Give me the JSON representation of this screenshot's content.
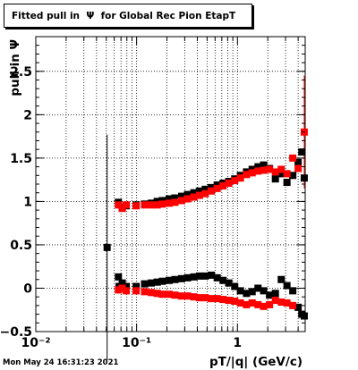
{
  "title": "Fitted pull in  Ψ  for Global Rec Pion EtapT",
  "footer": "Mon May 24 16:31:23 2021",
  "chart_data": {
    "type": "scatter",
    "xlabel": "pT/|q| (GeV/c)",
    "ylabel": "pull in  Ψ",
    "xscale": "log",
    "xlim": [
      0.01,
      4.7
    ],
    "ylim": [
      -0.5,
      2.9
    ],
    "grid": true,
    "x_ticks": [
      {
        "value": 0.01,
        "label": "10⁻²"
      },
      {
        "value": 0.1,
        "label": "10⁻¹"
      },
      {
        "value": 1,
        "label": "1"
      }
    ],
    "y_ticks": [
      {
        "value": -0.5,
        "label": "−0.5"
      },
      {
        "value": 0,
        "label": "0"
      },
      {
        "value": 0.5,
        "label": "0.5"
      },
      {
        "value": 1,
        "label": "1"
      },
      {
        "value": 1.5,
        "label": "1.5"
      },
      {
        "value": 2,
        "label": "2"
      },
      {
        "value": 2.5,
        "label": "2.5"
      }
    ],
    "series": [
      {
        "color": "#000000",
        "points": [
          {
            "x": 0.051,
            "y": 0.47,
            "err": 1.3
          },
          {
            "x": 0.066,
            "y": 0.13
          },
          {
            "x": 0.067,
            "y": 0.02
          },
          {
            "x": 0.072,
            "y": 0.06
          },
          {
            "x": 0.079,
            "y": 0.02
          },
          {
            "x": 0.099,
            "y": 0.02
          },
          {
            "x": 0.066,
            "y": 0.99
          },
          {
            "x": 0.072,
            "y": 0.93
          },
          {
            "x": 0.079,
            "y": 0.95
          },
          {
            "x": 0.099,
            "y": 0.96
          },
          {
            "x": 0.12,
            "y": 0.05
          },
          {
            "x": 0.14,
            "y": 0.06
          },
          {
            "x": 0.16,
            "y": 0.07
          },
          {
            "x": 0.18,
            "y": 0.08
          },
          {
            "x": 0.21,
            "y": 0.09
          },
          {
            "x": 0.24,
            "y": 0.1
          },
          {
            "x": 0.28,
            "y": 0.11
          },
          {
            "x": 0.32,
            "y": 0.12
          },
          {
            "x": 0.37,
            "y": 0.13
          },
          {
            "x": 0.42,
            "y": 0.14
          },
          {
            "x": 0.48,
            "y": 0.14
          },
          {
            "x": 0.55,
            "y": 0.15
          },
          {
            "x": 0.63,
            "y": 0.12
          },
          {
            "x": 0.72,
            "y": 0.09
          },
          {
            "x": 0.82,
            "y": 0.06
          },
          {
            "x": 0.94,
            "y": 0.02
          },
          {
            "x": 1.07,
            "y": -0.03
          },
          {
            "x": 1.23,
            "y": -0.06
          },
          {
            "x": 1.4,
            "y": -0.04
          },
          {
            "x": 1.6,
            "y": 0.0
          },
          {
            "x": 1.82,
            "y": -0.03
          },
          {
            "x": 2.08,
            "y": -0.08
          },
          {
            "x": 2.38,
            "y": -0.06
          },
          {
            "x": 2.72,
            "y": 0.1
          },
          {
            "x": 3.1,
            "y": 0.03
          },
          {
            "x": 3.54,
            "y": -0.03
          },
          {
            "x": 4.0,
            "y": -0.22
          },
          {
            "x": 4.35,
            "y": -0.3
          },
          {
            "x": 4.6,
            "y": -0.32
          },
          {
            "x": 0.12,
            "y": 0.97
          },
          {
            "x": 0.14,
            "y": 0.98
          },
          {
            "x": 0.16,
            "y": 1.0
          },
          {
            "x": 0.18,
            "y": 1.01
          },
          {
            "x": 0.21,
            "y": 1.03
          },
          {
            "x": 0.24,
            "y": 1.04
          },
          {
            "x": 0.28,
            "y": 1.06
          },
          {
            "x": 0.32,
            "y": 1.08
          },
          {
            "x": 0.37,
            "y": 1.1
          },
          {
            "x": 0.42,
            "y": 1.12
          },
          {
            "x": 0.48,
            "y": 1.14
          },
          {
            "x": 0.55,
            "y": 1.16
          },
          {
            "x": 0.63,
            "y": 1.19
          },
          {
            "x": 0.72,
            "y": 1.21
          },
          {
            "x": 0.82,
            "y": 1.23
          },
          {
            "x": 0.94,
            "y": 1.26
          },
          {
            "x": 1.07,
            "y": 1.3
          },
          {
            "x": 1.23,
            "y": 1.34
          },
          {
            "x": 1.4,
            "y": 1.37
          },
          {
            "x": 1.6,
            "y": 1.4
          },
          {
            "x": 1.82,
            "y": 1.42
          },
          {
            "x": 2.08,
            "y": 1.38
          },
          {
            "x": 2.38,
            "y": 1.26
          },
          {
            "x": 2.72,
            "y": 1.32
          },
          {
            "x": 3.1,
            "y": 1.22
          },
          {
            "x": 3.54,
            "y": 1.3
          },
          {
            "x": 4.0,
            "y": 1.45
          },
          {
            "x": 4.35,
            "y": 1.57
          },
          {
            "x": 4.6,
            "y": 1.27
          }
        ]
      },
      {
        "color": "#ff0000",
        "points": [
          {
            "x": 0.066,
            "y": 0.96
          },
          {
            "x": 0.072,
            "y": 0.92
          },
          {
            "x": 0.079,
            "y": 0.96
          },
          {
            "x": 0.099,
            "y": 0.95
          },
          {
            "x": 0.066,
            "y": -0.02
          },
          {
            "x": 0.072,
            "y": 0.0
          },
          {
            "x": 0.079,
            "y": -0.03
          },
          {
            "x": 0.099,
            "y": -0.03
          },
          {
            "x": 0.12,
            "y": 0.96
          },
          {
            "x": 0.14,
            "y": 0.96
          },
          {
            "x": 0.16,
            "y": 0.96
          },
          {
            "x": 0.18,
            "y": 0.97
          },
          {
            "x": 0.21,
            "y": 0.98
          },
          {
            "x": 0.24,
            "y": 0.99
          },
          {
            "x": 0.28,
            "y": 1.01
          },
          {
            "x": 0.32,
            "y": 1.03
          },
          {
            "x": 0.37,
            "y": 1.05
          },
          {
            "x": 0.42,
            "y": 1.07
          },
          {
            "x": 0.48,
            "y": 1.09
          },
          {
            "x": 0.55,
            "y": 1.12
          },
          {
            "x": 0.63,
            "y": 1.15
          },
          {
            "x": 0.72,
            "y": 1.18
          },
          {
            "x": 0.82,
            "y": 1.21
          },
          {
            "x": 0.94,
            "y": 1.24
          },
          {
            "x": 1.07,
            "y": 1.27
          },
          {
            "x": 1.23,
            "y": 1.31
          },
          {
            "x": 1.4,
            "y": 1.33
          },
          {
            "x": 1.6,
            "y": 1.35
          },
          {
            "x": 1.82,
            "y": 1.36
          },
          {
            "x": 2.08,
            "y": 1.37
          },
          {
            "x": 2.38,
            "y": 1.34
          },
          {
            "x": 2.72,
            "y": 1.37
          },
          {
            "x": 3.1,
            "y": 1.32
          },
          {
            "x": 3.54,
            "y": 1.5
          },
          {
            "x": 4.0,
            "y": 1.38
          },
          {
            "x": 4.6,
            "y": 1.8,
            "err": 0.65
          },
          {
            "x": 0.12,
            "y": -0.04
          },
          {
            "x": 0.14,
            "y": -0.05
          },
          {
            "x": 0.16,
            "y": -0.06
          },
          {
            "x": 0.18,
            "y": -0.07
          },
          {
            "x": 0.21,
            "y": -0.07
          },
          {
            "x": 0.24,
            "y": -0.08
          },
          {
            "x": 0.28,
            "y": -0.09
          },
          {
            "x": 0.32,
            "y": -0.09
          },
          {
            "x": 0.37,
            "y": -0.1
          },
          {
            "x": 0.42,
            "y": -0.11
          },
          {
            "x": 0.48,
            "y": -0.11
          },
          {
            "x": 0.55,
            "y": -0.12
          },
          {
            "x": 0.63,
            "y": -0.12
          },
          {
            "x": 0.72,
            "y": -0.13
          },
          {
            "x": 0.82,
            "y": -0.14
          },
          {
            "x": 0.94,
            "y": -0.15
          },
          {
            "x": 1.07,
            "y": -0.17
          },
          {
            "x": 1.23,
            "y": -0.19
          },
          {
            "x": 1.4,
            "y": -0.17
          },
          {
            "x": 1.6,
            "y": -0.19
          },
          {
            "x": 1.82,
            "y": -0.21
          },
          {
            "x": 2.08,
            "y": -0.19
          },
          {
            "x": 2.38,
            "y": -0.14
          },
          {
            "x": 2.72,
            "y": -0.16
          },
          {
            "x": 3.1,
            "y": -0.17
          },
          {
            "x": 3.54,
            "y": -0.2
          }
        ]
      }
    ]
  }
}
